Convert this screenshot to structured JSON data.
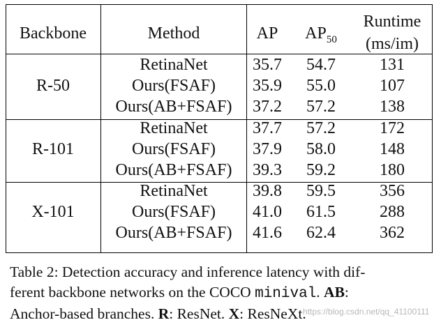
{
  "table": {
    "headers": {
      "backbone": "Backbone",
      "method": "Method",
      "ap": "AP",
      "ap50_main": "AP",
      "ap50_sub": "50",
      "runtime_line1": "Runtime",
      "runtime_line2": "(ms/im)"
    },
    "groups": [
      {
        "backbone": "R-50",
        "rows": [
          {
            "method": "RetinaNet",
            "ap": "35.7",
            "ap50": "54.7",
            "runtime": "131"
          },
          {
            "method": "Ours(FSAF)",
            "ap": "35.9",
            "ap50": "55.0",
            "runtime": "107"
          },
          {
            "method": "Ours(AB+FSAF)",
            "ap": "37.2",
            "ap50": "57.2",
            "runtime": "138"
          }
        ]
      },
      {
        "backbone": "R-101",
        "rows": [
          {
            "method": "RetinaNet",
            "ap": "37.7",
            "ap50": "57.2",
            "runtime": "172"
          },
          {
            "method": "Ours(FSAF)",
            "ap": "37.9",
            "ap50": "58.0",
            "runtime": "148"
          },
          {
            "method": "Ours(AB+FSAF)",
            "ap": "39.3",
            "ap50": "59.2",
            "runtime": "180"
          }
        ]
      },
      {
        "backbone": "X-101",
        "rows": [
          {
            "method": "RetinaNet",
            "ap": "39.8",
            "ap50": "59.5",
            "runtime": "356"
          },
          {
            "method": "Ours(FSAF)",
            "ap": "41.0",
            "ap50": "61.5",
            "runtime": "288"
          },
          {
            "method": "Ours(AB+FSAF)",
            "ap": "41.6",
            "ap50": "62.4",
            "runtime": "362"
          }
        ]
      }
    ]
  },
  "caption": {
    "line1": "Table 2: Detection accuracy and inference latency with dif-",
    "line2_pre": "ferent backbone networks on the COCO ",
    "line2_mono": "minival",
    "line2_post": ". ",
    "line2_bold": "AB",
    "line2_end": ":",
    "line3_pre": "Anchor-based branches. ",
    "line3_r": "R",
    "line3_mid1": ": ResNet. ",
    "line3_x": "X",
    "line3_mid2": ": ResNeXt."
  },
  "watermark": "https://blog.csdn.net/qq_41100111"
}
